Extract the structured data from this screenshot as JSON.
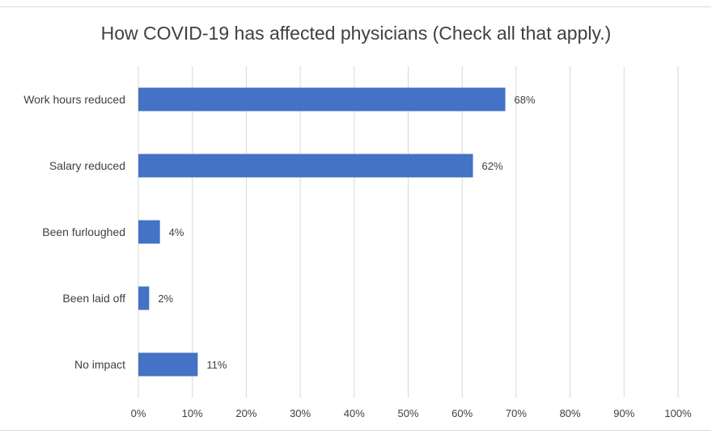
{
  "chart_data": {
    "type": "bar",
    "orientation": "horizontal",
    "title": "How COVID-19 has affected physicians (Check all that apply.)",
    "categories": [
      "Work hours reduced",
      "Salary reduced",
      "Been furloughed",
      "Been laid off",
      "No impact"
    ],
    "values": [
      68,
      62,
      4,
      2,
      11
    ],
    "data_labels": [
      "68%",
      "62%",
      "4%",
      "2%",
      "11%"
    ],
    "x_ticks": [
      "0%",
      "10%",
      "20%",
      "30%",
      "40%",
      "50%",
      "60%",
      "70%",
      "80%",
      "90%",
      "100%"
    ],
    "xlim": [
      0,
      100
    ],
    "grid": true,
    "bar_color": "#4472c4",
    "grid_color": "#d9d9d9",
    "text_color": "#404040"
  }
}
